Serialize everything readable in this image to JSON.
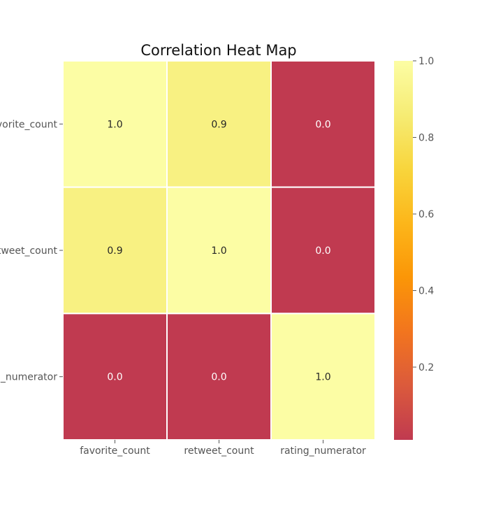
{
  "chart_data": {
    "type": "heatmap",
    "title": "Correlation Heat Map",
    "xlabel": "",
    "ylabel": "",
    "x_categories": [
      "favorite_count",
      "retweet_count",
      "rating_numerator"
    ],
    "y_categories": [
      "favorite_count",
      "retweet_count",
      "rating_numerator"
    ],
    "y_tick_labels_visible": [
      "vorite_count",
      "etweet_count",
      "_numerator"
    ],
    "values": [
      [
        1.0,
        0.9,
        0.0
      ],
      [
        0.9,
        1.0,
        0.0
      ],
      [
        0.0,
        0.0,
        1.0
      ]
    ],
    "value_labels": [
      [
        "1.0",
        "0.9",
        "0.0"
      ],
      [
        "0.9",
        "1.0",
        "0.0"
      ],
      [
        "0.0",
        "0.0",
        "1.0"
      ]
    ],
    "colorbar": {
      "range": [
        0.01,
        1.0
      ],
      "ticks": [
        0.2,
        0.4,
        0.6,
        0.8,
        1.0
      ],
      "tick_labels": [
        "0.2",
        "0.4",
        "0.6",
        "0.8",
        "1.0"
      ],
      "colormap_stops": [
        "#c03a50",
        "#db5a3c",
        "#f2751e",
        "#fb9607",
        "#fcb61a",
        "#f8d53c",
        "#f6ec74",
        "#fcfda4"
      ]
    },
    "grid": false,
    "legend": "colorbar-right"
  }
}
